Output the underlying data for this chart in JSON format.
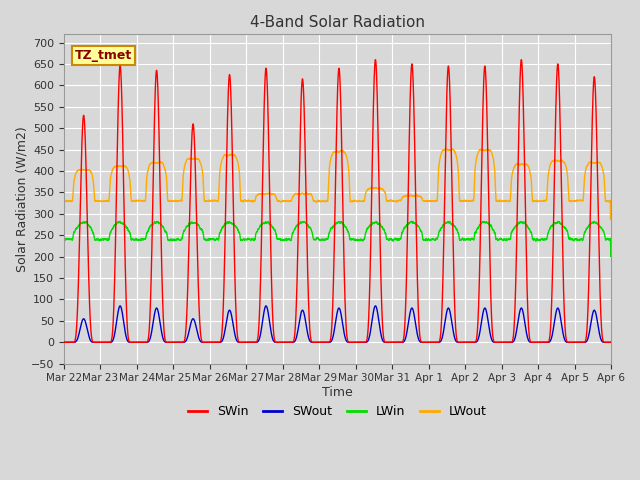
{
  "title": "4-Band Solar Radiation",
  "xlabel": "Time",
  "ylabel": "Solar Radiation (W/m2)",
  "ylim": [
    -50,
    720
  ],
  "bg_color": "#d8d8d8",
  "grid_color": "#ffffff",
  "annotation_text": "TZ_tmet",
  "annotation_bg": "#ffff99",
  "annotation_border": "#cc8800",
  "legend_labels": [
    "SWin",
    "SWout",
    "LWin",
    "LWout"
  ],
  "line_colors": [
    "#ff0000",
    "#0000cc",
    "#00dd00",
    "#ffaa00"
  ],
  "num_days": 15,
  "x_tick_labels": [
    "Mar 22",
    "Mar 23",
    "Mar 24",
    "Mar 25",
    "Mar 26",
    "Mar 27",
    "Mar 28",
    "Mar 29",
    "Mar 30",
    "Mar 31",
    "Apr 1",
    "Apr 2",
    "Apr 3",
    "Apr 4",
    "Apr 5",
    "Apr 6"
  ],
  "SWin_peaks": [
    530,
    645,
    635,
    510,
    625,
    640,
    615,
    640,
    660,
    650,
    645,
    645,
    660,
    650,
    620
  ],
  "SWout_peaks": [
    55,
    85,
    80,
    55,
    75,
    85,
    75,
    80,
    85,
    80,
    80,
    80,
    80,
    80,
    75
  ],
  "LWin_base": 250,
  "LWout_base": 330,
  "LWout_peaks": [
    415,
    425,
    435,
    445,
    455,
    350,
    350,
    465,
    365,
    345,
    470,
    470,
    430,
    440,
    435
  ]
}
